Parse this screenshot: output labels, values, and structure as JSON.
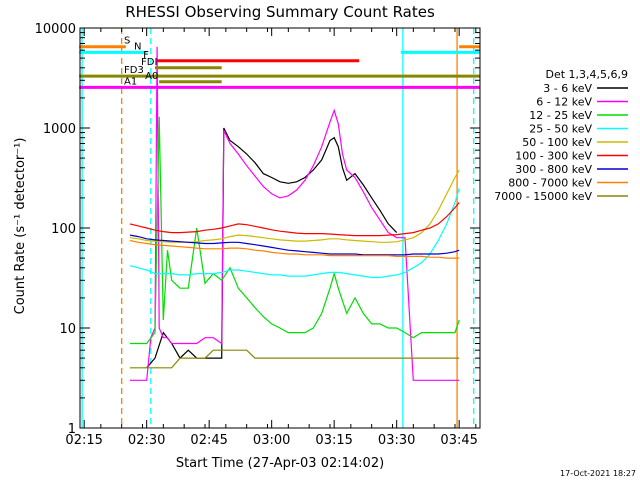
{
  "chart_data": {
    "type": "line",
    "title": "RHESSI Observing Summary Count Rates",
    "xlabel": "Start Time (27-Apr-03 02:14:02)",
    "ylabel": "Count Rate (s⁻¹ detector⁻¹)",
    "x_unit": "minutes after 02:14:02",
    "xlim": [
      0,
      96
    ],
    "ylim": [
      1,
      10000
    ],
    "yscale": "log",
    "x_ticks": [
      {
        "t": 1,
        "label": "02:15"
      },
      {
        "t": 16,
        "label": "02:30"
      },
      {
        "t": 31,
        "label": "02:45"
      },
      {
        "t": 46,
        "label": "03:00"
      },
      {
        "t": 61,
        "label": "03:15"
      },
      {
        "t": 76,
        "label": "03:30"
      },
      {
        "t": 91,
        "label": "03:45"
      }
    ],
    "y_ticks": [
      1,
      10,
      100,
      1000,
      10000
    ],
    "y_tick_labels": [
      "1",
      "10",
      "100",
      "1000",
      "10000"
    ],
    "legend_title": "Det 1,3,4,5,6,9",
    "legend_position": "right",
    "footer_date": "17-Oct-2021 18:27",
    "series": [
      {
        "name": "3 - 6 keV",
        "color": "#000000",
        "x": [
          16,
          18,
          20,
          22,
          24,
          26,
          28,
          30,
          32,
          34,
          34.5,
          36,
          38,
          40,
          42,
          44,
          46,
          48,
          50,
          52,
          54,
          56,
          58,
          60,
          61,
          62,
          63,
          64,
          66,
          68,
          70,
          72,
          74,
          76,
          76.5
        ],
        "y": [
          4,
          5,
          9,
          7,
          5,
          6,
          5,
          5,
          5,
          5,
          1000,
          750,
          650,
          550,
          450,
          350,
          320,
          290,
          280,
          290,
          320,
          380,
          480,
          750,
          800,
          650,
          400,
          300,
          350,
          270,
          200,
          150,
          110,
          90,
          null
        ]
      },
      {
        "name": "6 - 12 keV",
        "color": "#ff00ff",
        "x": [
          12,
          14,
          16,
          17,
          18,
          18.5,
          19,
          20,
          21,
          22,
          24,
          26,
          28,
          30,
          32,
          34,
          34.5,
          36,
          38,
          40,
          42,
          44,
          46,
          48,
          50,
          52,
          54,
          56,
          58,
          60,
          61,
          62,
          63,
          64,
          66,
          68,
          70,
          72,
          74,
          76,
          78,
          80,
          82,
          84,
          86,
          88,
          90,
          91
        ],
        "y": [
          3,
          3,
          3,
          8,
          10,
          6500,
          10,
          8,
          8,
          7,
          7,
          7,
          7,
          8,
          8,
          7,
          950,
          700,
          550,
          420,
          330,
          260,
          220,
          200,
          210,
          240,
          300,
          420,
          650,
          1150,
          1500,
          1100,
          550,
          380,
          320,
          230,
          160,
          120,
          90,
          80,
          80,
          3,
          3,
          3,
          3,
          3,
          3,
          3
        ]
      },
      {
        "name": "12 - 25 keV",
        "color": "#00dd00",
        "x": [
          12,
          14,
          16,
          18,
          19,
          20,
          21,
          22,
          24,
          26,
          28,
          30,
          32,
          34,
          36,
          38,
          40,
          42,
          44,
          46,
          48,
          50,
          52,
          54,
          56,
          58,
          60,
          61,
          62,
          64,
          66,
          68,
          70,
          72,
          74,
          76,
          78,
          80,
          82,
          84,
          86,
          88,
          90,
          91
        ],
        "y": [
          7,
          7,
          7,
          9,
          1300,
          12,
          60,
          30,
          25,
          25,
          100,
          28,
          35,
          30,
          40,
          25,
          20,
          16,
          13,
          11,
          10,
          9,
          9,
          9,
          10,
          14,
          25,
          35,
          25,
          14,
          20,
          14,
          11,
          11,
          10,
          10,
          9,
          8,
          9,
          9,
          9,
          9,
          9,
          12
        ]
      },
      {
        "name": "25 - 50 keV",
        "color": "#00ffff",
        "x": [
          12,
          14,
          16,
          18,
          20,
          22,
          24,
          26,
          28,
          30,
          32,
          34,
          36,
          38,
          40,
          42,
          44,
          46,
          48,
          50,
          52,
          54,
          56,
          58,
          60,
          62,
          64,
          66,
          68,
          70,
          72,
          74,
          76,
          78,
          80,
          82,
          84,
          86,
          88,
          90,
          91
        ],
        "y": [
          42,
          40,
          38,
          35,
          35,
          35,
          34,
          34,
          35,
          35,
          35,
          36,
          38,
          38,
          37,
          36,
          35,
          34,
          34,
          33,
          33,
          33,
          34,
          35,
          36,
          36,
          35,
          34,
          33,
          32,
          32,
          33,
          34,
          36,
          40,
          45,
          55,
          75,
          110,
          180,
          250
        ]
      },
      {
        "name": "50 - 100 keV",
        "color": "#ccbb00",
        "x": [
          12,
          14,
          16,
          18,
          20,
          22,
          24,
          26,
          28,
          30,
          32,
          34,
          36,
          38,
          40,
          42,
          44,
          46,
          48,
          50,
          52,
          54,
          56,
          58,
          60,
          62,
          64,
          66,
          68,
          70,
          72,
          74,
          76,
          78,
          80,
          82,
          84,
          86,
          88,
          90,
          91
        ],
        "y": [
          80,
          78,
          75,
          74,
          73,
          72,
          72,
          72,
          73,
          75,
          76,
          78,
          82,
          85,
          84,
          82,
          80,
          78,
          76,
          75,
          74,
          74,
          75,
          76,
          78,
          78,
          76,
          75,
          74,
          73,
          72,
          72,
          73,
          76,
          80,
          90,
          110,
          150,
          220,
          320,
          380
        ]
      },
      {
        "name": "100 - 300 keV",
        "color": "#ff0000",
        "x": [
          12,
          14,
          16,
          18,
          20,
          22,
          24,
          26,
          28,
          30,
          32,
          34,
          36,
          38,
          40,
          42,
          44,
          46,
          48,
          50,
          52,
          54,
          56,
          58,
          60,
          62,
          64,
          66,
          68,
          70,
          72,
          74,
          76,
          78,
          80,
          82,
          84,
          86,
          88,
          90,
          91
        ],
        "y": [
          110,
          105,
          100,
          95,
          92,
          90,
          90,
          91,
          92,
          95,
          97,
          100,
          105,
          110,
          108,
          104,
          100,
          96,
          93,
          91,
          89,
          88,
          88,
          88,
          87,
          86,
          85,
          84,
          84,
          84,
          84,
          85,
          86,
          88,
          90,
          95,
          100,
          110,
          130,
          160,
          180
        ]
      },
      {
        "name": "300 - 800 keV",
        "color": "#0000cc",
        "x": [
          12,
          14,
          16,
          18,
          20,
          22,
          24,
          26,
          28,
          30,
          32,
          34,
          36,
          38,
          40,
          42,
          44,
          46,
          48,
          50,
          52,
          54,
          56,
          58,
          60,
          62,
          64,
          66,
          68,
          70,
          72,
          74,
          76,
          78,
          80,
          82,
          84,
          86,
          88,
          90,
          91
        ],
        "y": [
          85,
          82,
          78,
          76,
          75,
          74,
          73,
          72,
          71,
          70,
          70,
          71,
          72,
          72,
          70,
          68,
          66,
          64,
          62,
          60,
          59,
          58,
          57,
          56,
          55,
          55,
          55,
          55,
          54,
          54,
          54,
          54,
          54,
          54,
          55,
          55,
          55,
          55,
          56,
          58,
          60
        ]
      },
      {
        "name": "800 - 7000 keV",
        "color": "#ff8000",
        "x": [
          12,
          14,
          16,
          18,
          20,
          22,
          24,
          26,
          28,
          30,
          32,
          34,
          36,
          38,
          40,
          42,
          44,
          46,
          48,
          50,
          52,
          54,
          56,
          58,
          60,
          62,
          64,
          66,
          68,
          70,
          72,
          74,
          76,
          78,
          80,
          82,
          84,
          86,
          88,
          90,
          91
        ],
        "y": [
          75,
          72,
          70,
          68,
          67,
          66,
          65,
          64,
          63,
          62,
          62,
          62,
          63,
          63,
          62,
          60,
          59,
          57,
          56,
          55,
          55,
          54,
          54,
          54,
          53,
          53,
          53,
          53,
          53,
          53,
          53,
          53,
          52,
          52,
          52,
          52,
          51,
          51,
          50,
          50,
          50
        ]
      },
      {
        "name": "7000 - 15000 keV",
        "color": "#888800",
        "x": [
          12,
          14,
          16,
          18,
          20,
          22,
          24,
          26,
          28,
          30,
          32,
          34,
          36,
          38,
          40,
          42,
          44,
          46,
          48,
          50,
          52,
          54,
          56,
          58,
          60,
          62,
          64,
          66,
          68,
          70,
          72,
          74,
          76,
          78,
          80,
          82,
          84,
          86,
          88,
          90,
          91
        ],
        "y": [
          4,
          4,
          4,
          4,
          4,
          4,
          5,
          5,
          5,
          5,
          6,
          6,
          6,
          6,
          6,
          5,
          5,
          5,
          5,
          5,
          5,
          5,
          5,
          5,
          5,
          5,
          5,
          5,
          5,
          5,
          5,
          5,
          5,
          5,
          5,
          5,
          5,
          5,
          5,
          5,
          5
        ]
      }
    ],
    "flag_bars": [
      {
        "label": "S",
        "color": "#ff8000",
        "y": 6500,
        "segments": [
          [
            -0.2,
            11
          ]
        ],
        "right_segment": [
          91,
          96
        ]
      },
      {
        "label": "N",
        "color": "#00ffff",
        "y": 5700,
        "segments": [
          [
            -0.2,
            16
          ]
        ],
        "right_segment": [
          77,
          96
        ]
      },
      {
        "label": "F",
        "color": "#ff0000",
        "y": 4700,
        "segments": [
          [
            18.5,
            67
          ]
        ]
      },
      {
        "label": "FDI",
        "color": "#888800",
        "y": 4000,
        "segments": [
          [
            18,
            34
          ]
        ]
      },
      {
        "label": "FD3",
        "color": "#888800",
        "y": 3300,
        "segments": [
          [
            -0.2,
            96
          ]
        ]
      },
      {
        "label": "A0",
        "color": "#888800",
        "y": 2900,
        "segments": [
          [
            19,
            34
          ]
        ]
      },
      {
        "label": "A1",
        "color": "#ff00ff",
        "y": 2550,
        "segments": [
          [
            -0.2,
            96
          ]
        ]
      }
    ],
    "vertical_markers": [
      {
        "t": 0.5,
        "color": "#00ffff",
        "style": "solid"
      },
      {
        "t": 10,
        "color": "#ff8000",
        "style": "dashed"
      },
      {
        "t": 17,
        "color": "#00ffff",
        "style": "dashed"
      },
      {
        "t": 77.5,
        "color": "#00ffff",
        "style": "solid"
      },
      {
        "t": 90.5,
        "color": "#ff8000",
        "style": "solid"
      },
      {
        "t": 94.5,
        "color": "#00ffff",
        "style": "dashed"
      }
    ]
  }
}
